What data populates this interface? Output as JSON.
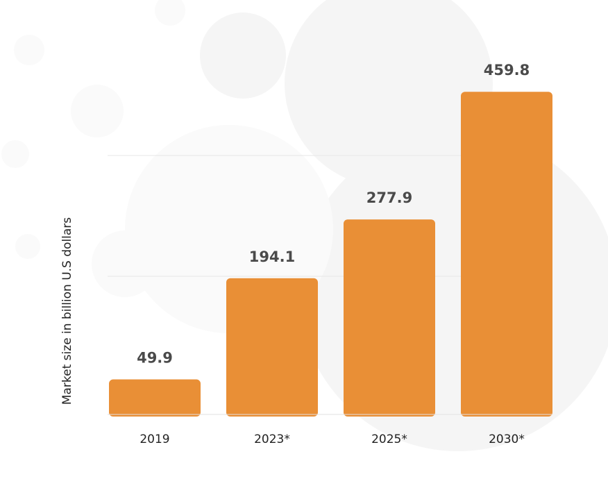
{
  "chart_data": {
    "type": "bar",
    "title": "",
    "xlabel": "",
    "ylabel": "Market size in billion U.S dollars",
    "categories": [
      "2019",
      "2023*",
      "2025*",
      "2030*"
    ],
    "values": [
      49.9,
      194.1,
      277.9,
      459.8
    ],
    "value_labels": [
      "49.9",
      "194.1",
      "277.9",
      "459.8"
    ],
    "ylim": [
      0,
      500
    ],
    "grid": true,
    "legend": "none",
    "bar_color": "#E98F36",
    "value_label_color": "#4A4A4A"
  }
}
